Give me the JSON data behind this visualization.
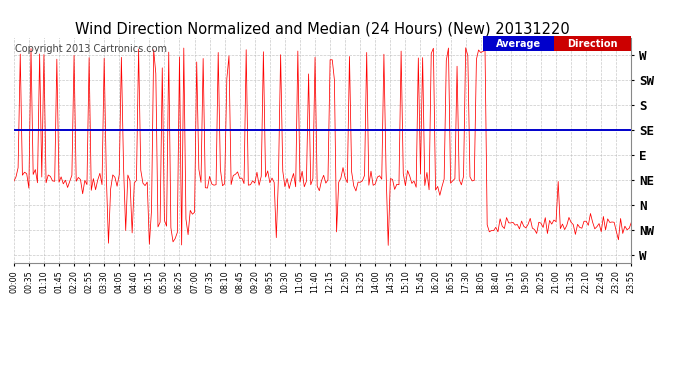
{
  "title": "Wind Direction Normalized and Median (24 Hours) (New) 20131220",
  "copyright": "Copyright 2013 Cartronics.com",
  "ytick_labels": [
    "W",
    "SW",
    "S",
    "SE",
    "E",
    "NE",
    "N",
    "NW",
    "W"
  ],
  "ytick_values": [
    8,
    7,
    6,
    5,
    4,
    3,
    2,
    1,
    0
  ],
  "ylim": [
    -0.3,
    8.7
  ],
  "xlim_min": 0,
  "xlim_max": 287,
  "average_direction_y": 5.0,
  "bg_color": "#ffffff",
  "plot_bg_color": "#ffffff",
  "line_color": "#ff0000",
  "avg_line_color": "#0000cc",
  "grid_color": "#bbbbbb",
  "title_fontsize": 10.5,
  "copyright_fontsize": 7,
  "legend_text1": "Average",
  "legend_text2": "Direction",
  "n_points": 288
}
